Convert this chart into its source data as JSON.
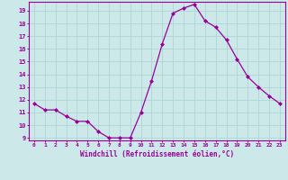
{
  "x": [
    0,
    1,
    2,
    3,
    4,
    5,
    6,
    7,
    8,
    9,
    10,
    11,
    12,
    13,
    14,
    15,
    16,
    17,
    18,
    19,
    20,
    21,
    22,
    23
  ],
  "y": [
    11.7,
    11.2,
    11.2,
    10.7,
    10.3,
    10.3,
    9.5,
    9.0,
    9.0,
    9.0,
    11.0,
    13.5,
    16.4,
    18.8,
    19.2,
    19.5,
    18.2,
    17.7,
    16.7,
    15.2,
    13.8,
    13.0,
    12.3,
    11.7
  ],
  "line_color": "#990099",
  "marker": "D",
  "marker_size": 2.0,
  "bg_color": "#cce8e8",
  "grid_color": "#b0d8d8",
  "xlabel": "Windchill (Refroidissement éolien,°C)",
  "xlabel_color": "#990099",
  "tick_color": "#990099",
  "ylim_min": 8.8,
  "ylim_max": 19.7,
  "xlim_min": -0.5,
  "xlim_max": 23.5,
  "yticks": [
    9,
    10,
    11,
    12,
    13,
    14,
    15,
    16,
    17,
    18,
    19
  ],
  "xticks": [
    0,
    1,
    2,
    3,
    4,
    5,
    6,
    7,
    8,
    9,
    10,
    11,
    12,
    13,
    14,
    15,
    16,
    17,
    18,
    19,
    20,
    21,
    22,
    23
  ],
  "spine_color": "#990099"
}
